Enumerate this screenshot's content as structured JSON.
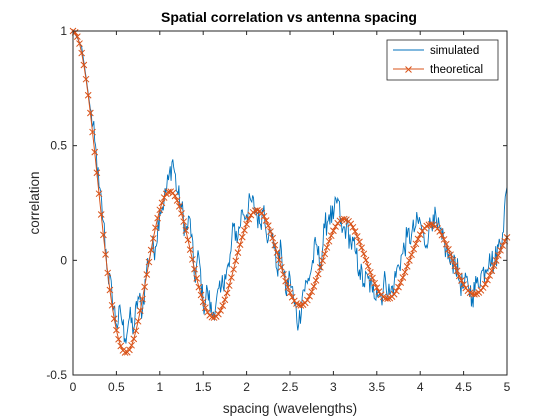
{
  "chart_data": {
    "type": "line",
    "title": "Spatial correlation vs antenna spacing",
    "xlabel": "spacing (wavelengths)",
    "ylabel": "correlation",
    "xlim": [
      0,
      5
    ],
    "ylim": [
      -0.5,
      1
    ],
    "x_ticks": [
      "0",
      "0.5",
      "1",
      "1.5",
      "2",
      "2.5",
      "3",
      "3.5",
      "4",
      "4.5",
      "5"
    ],
    "y_ticks": [
      "-0.5",
      "0",
      "0.5",
      "1"
    ],
    "grid": false,
    "legend_position": "top-right",
    "series": [
      {
        "name": "simulated",
        "color": "#0072BD",
        "marker": "none",
        "style": "noisy",
        "x": [
          0,
          0.05,
          0.1,
          0.15,
          0.2,
          0.25,
          0.3,
          0.35,
          0.4,
          0.45,
          0.5,
          0.55,
          0.6,
          0.65,
          0.7,
          0.75,
          0.8,
          0.85,
          0.9,
          0.95,
          1,
          1.05,
          1.1,
          1.15,
          1.2,
          1.25,
          1.3,
          1.35,
          1.4,
          1.45,
          1.5,
          1.55,
          1.6,
          1.65,
          1.7,
          1.75,
          1.8,
          1.85,
          1.9,
          1.95,
          2,
          2.05,
          2.1,
          2.15,
          2.2,
          2.25,
          2.3,
          2.35,
          2.4,
          2.45,
          2.5,
          2.55,
          2.6,
          2.65,
          2.7,
          2.75,
          2.8,
          2.85,
          2.9,
          2.95,
          3,
          3.05,
          3.1,
          3.15,
          3.2,
          3.25,
          3.3,
          3.35,
          3.4,
          3.45,
          3.5,
          3.55,
          3.6,
          3.65,
          3.7,
          3.75,
          3.8,
          3.85,
          3.9,
          3.95,
          4,
          4.05,
          4.1,
          4.15,
          4.2,
          4.25,
          4.3,
          4.35,
          4.4,
          4.45,
          4.5,
          4.55,
          4.6,
          4.65,
          4.7,
          4.75,
          4.8,
          4.85,
          4.9,
          4.95,
          5
        ],
        "y": [
          1,
          0.97,
          0.93,
          0.8,
          0.66,
          0.52,
          0.32,
          0.17,
          -0.05,
          -0.15,
          -0.28,
          -0.23,
          -0.34,
          -0.25,
          -0.3,
          -0.16,
          -0.22,
          -0.03,
          0.05,
          0.06,
          0.22,
          0.26,
          0.35,
          0.44,
          0.3,
          0.23,
          0.12,
          0.18,
          -0.08,
          0.02,
          -0.2,
          -0.13,
          -0.24,
          -0.18,
          -0.14,
          -0.06,
          -0.03,
          0.15,
          0.1,
          0.22,
          0.2,
          0.26,
          0.22,
          0.16,
          0.24,
          0.09,
          0.12,
          -0.04,
          0.05,
          -0.14,
          -0.07,
          -0.19,
          -0.28,
          -0.13,
          -0.1,
          -0.03,
          0.07,
          -0.02,
          0.14,
          0.2,
          0.18,
          0.27,
          0.12,
          0.15,
          0.08,
          0.04,
          -0.04,
          -0.1,
          -0.08,
          -0.14,
          -0.12,
          -0.16,
          -0.08,
          -0.15,
          -0.1,
          -0.02,
          0.03,
          0.1,
          0.11,
          0.15,
          0.17,
          0.07,
          0.13,
          0.2,
          0.14,
          0.09,
          0.05,
          -0.02,
          0.01,
          -0.09,
          -0.12,
          -0.1,
          -0.16,
          -0.1,
          -0.06,
          -0.04,
          0.03,
          -0.02,
          0.06,
          0.12,
          0.32
        ]
      },
      {
        "name": "theoretical",
        "color": "#D95319",
        "marker": "x",
        "function": "J0(2*pi*x)",
        "x_step": 0.025
      }
    ]
  }
}
